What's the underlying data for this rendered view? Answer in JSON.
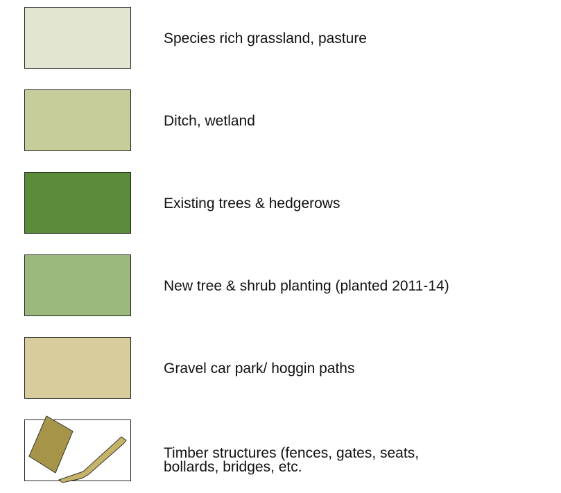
{
  "legend": {
    "items": [
      {
        "label": "Species rich grassland, pasture",
        "color": "#e2e6d0"
      },
      {
        "label": "Ditch, wetland",
        "color": "#c6cd9b"
      },
      {
        "label": "Existing trees & hedgerows",
        "color": "#5b8c3a"
      },
      {
        "label": "New tree & shrub planting (planted 2011-14)",
        "color": "#9bb97d"
      },
      {
        "label": "Gravel car park/ hoggin paths",
        "color": "#d8cc9c"
      },
      {
        "label": "Timber structures (fences, gates, seats,\nbollards, bridges, etc.",
        "color": "#ffffff"
      }
    ]
  }
}
